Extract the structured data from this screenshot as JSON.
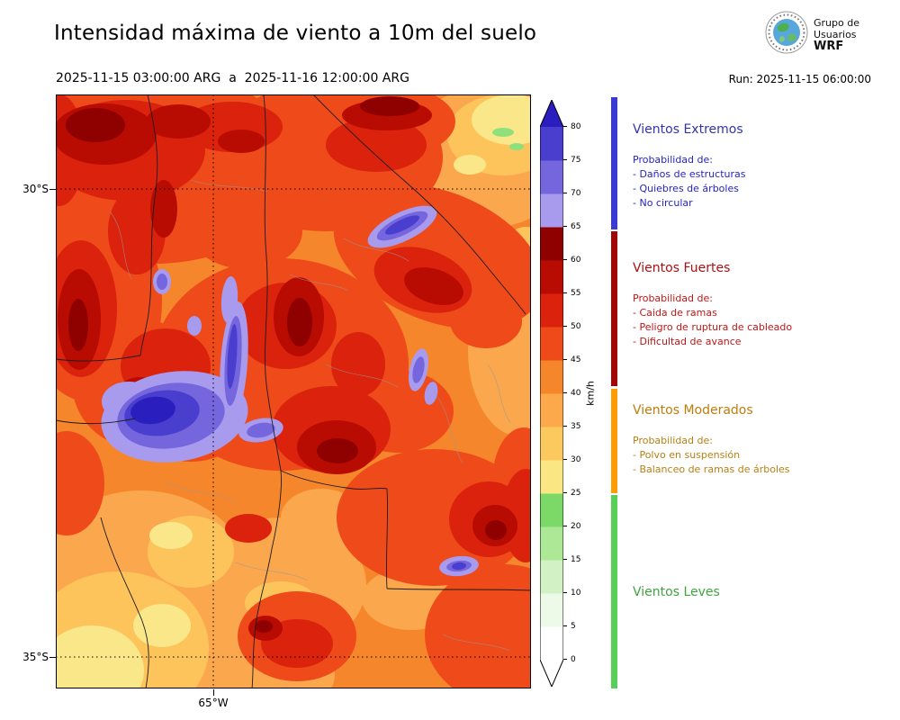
{
  "header": {
    "title": "Intensidad máxima de viento a 10m del suelo",
    "period": "2025-11-15 03:00:00 ARG  a  2025-11-16 12:00:00 ARG",
    "run": "Run: 2025-11-15 06:00:00",
    "logo_text_top": "Grupo de",
    "logo_text_mid": "Usuarios",
    "logo_text_bottom": "WRF"
  },
  "map": {
    "lat_labels": [
      "30°S",
      "35°S"
    ],
    "lon_labels": [
      "65°W"
    ]
  },
  "colorbar": {
    "unit": "km/h",
    "tick_values": [
      0,
      5,
      10,
      15,
      20,
      25,
      30,
      35,
      40,
      45,
      50,
      55,
      60,
      65,
      70,
      75,
      80
    ],
    "segment_colors": [
      "#FFFFFF",
      "#EDFAE8",
      "#D2F2C6",
      "#ACE896",
      "#7CD968",
      "#FAE783",
      "#FCC95F",
      "#FBA94A",
      "#F6862B",
      "#EE4A1A",
      "#DA220C",
      "#B80B02",
      "#8F0000",
      "#A89BEE",
      "#7566DE",
      "#4A3ECF"
    ],
    "arrow_top_color": "#2A1FBE",
    "arrow_bottom_color": "#FFFFFF"
  },
  "legend": {
    "sections": [
      {
        "heading": "Vientos Extremos",
        "heading_color": "#3333AE",
        "text_color": "#2323C8",
        "bar_color": "#3A3AD6",
        "prob_label": "Probabilidad de:",
        "items": [
          "- Daños de estructuras",
          "- Quiebres de árboles",
          "- No circular"
        ]
      },
      {
        "heading": "Vientos Fuertes",
        "heading_color": "#AA1111",
        "text_color": "#C41414",
        "bar_color": "#A30505",
        "prob_label": "Probabilidad de:",
        "items": [
          "- Caida de ramas",
          "- Peligro de ruptura de cableado",
          "- Dificultad de avance"
        ]
      },
      {
        "heading": "Vientos Moderados",
        "heading_color": "#C07C0A",
        "text_color": "#B97F10",
        "bar_color": "#FF9C00",
        "prob_label": "Probabilidad de:",
        "items": [
          "- Polvo en suspensión",
          "- Balanceo de ramas de árboles"
        ]
      },
      {
        "heading": "Vientos Leves",
        "heading_color": "#3FA43F",
        "text_color": "#3FA43F",
        "bar_color": "#58D058",
        "prob_label": "",
        "items": []
      }
    ]
  }
}
